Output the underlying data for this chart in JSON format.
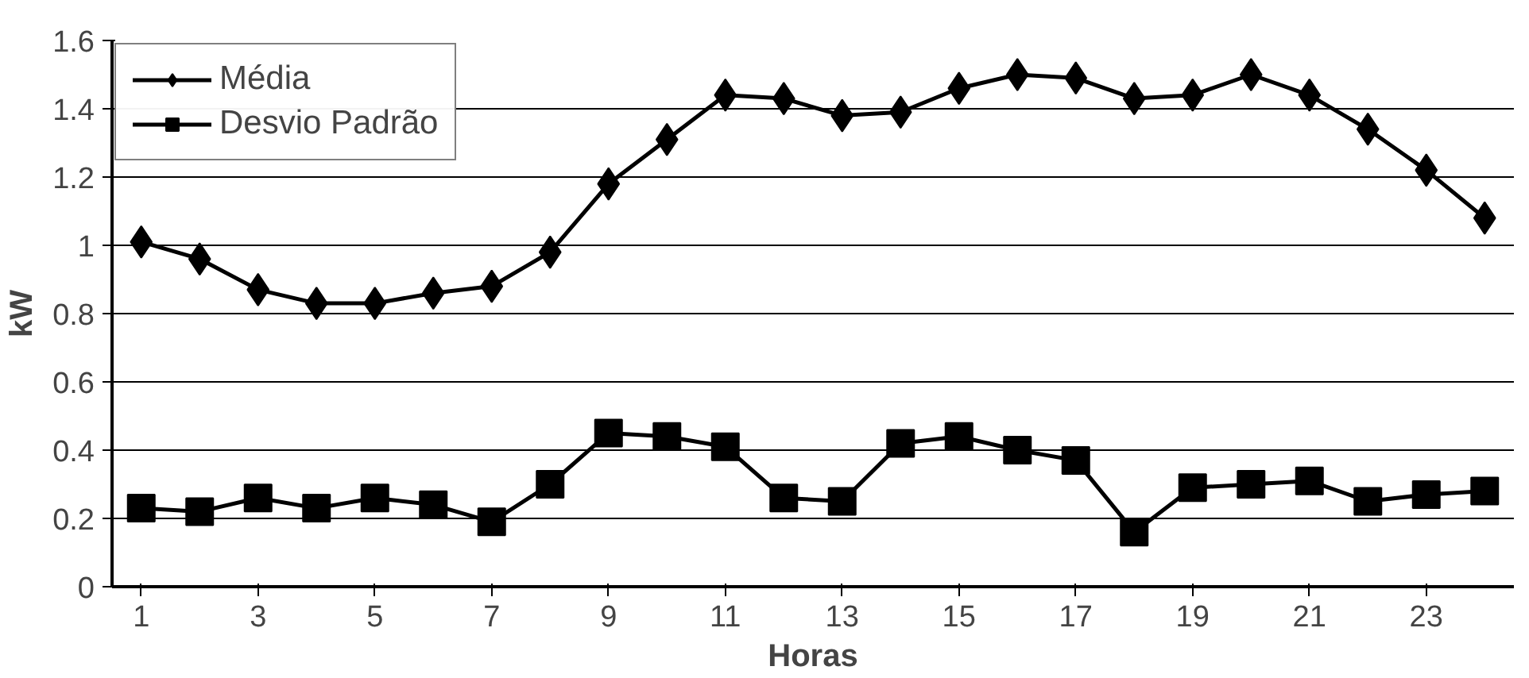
{
  "chart_data": {
    "type": "line",
    "xlabel": "Horas",
    "ylabel": "kW",
    "x": [
      1,
      2,
      3,
      4,
      5,
      6,
      7,
      8,
      9,
      10,
      11,
      12,
      13,
      14,
      15,
      16,
      17,
      18,
      19,
      20,
      21,
      22,
      23,
      24
    ],
    "xlim": [
      0.5,
      24.5
    ],
    "xticks": [
      1,
      3,
      5,
      7,
      9,
      11,
      13,
      15,
      17,
      19,
      21,
      23
    ],
    "ylim": [
      0,
      1.6
    ],
    "yticks": [
      0,
      0.2,
      0.4,
      0.6,
      0.8,
      1,
      1.2,
      1.4,
      1.6
    ],
    "grid": "y",
    "legend": "top left",
    "series": [
      {
        "name": "Média",
        "color": "#000000",
        "marker": "diamond",
        "values": [
          1.01,
          0.96,
          0.87,
          0.83,
          0.83,
          0.86,
          0.88,
          0.98,
          1.18,
          1.31,
          1.44,
          1.43,
          1.38,
          1.39,
          1.46,
          1.5,
          1.49,
          1.43,
          1.44,
          1.5,
          1.44,
          1.34,
          1.22,
          1.08
        ]
      },
      {
        "name": "Desvio Padrão",
        "color": "#000000",
        "marker": "square",
        "values": [
          0.23,
          0.22,
          0.26,
          0.23,
          0.26,
          0.24,
          0.19,
          0.3,
          0.45,
          0.44,
          0.41,
          0.26,
          0.25,
          0.42,
          0.44,
          0.4,
          0.37,
          0.16,
          0.29,
          0.3,
          0.31,
          0.25,
          0.27,
          0.28
        ]
      }
    ]
  }
}
